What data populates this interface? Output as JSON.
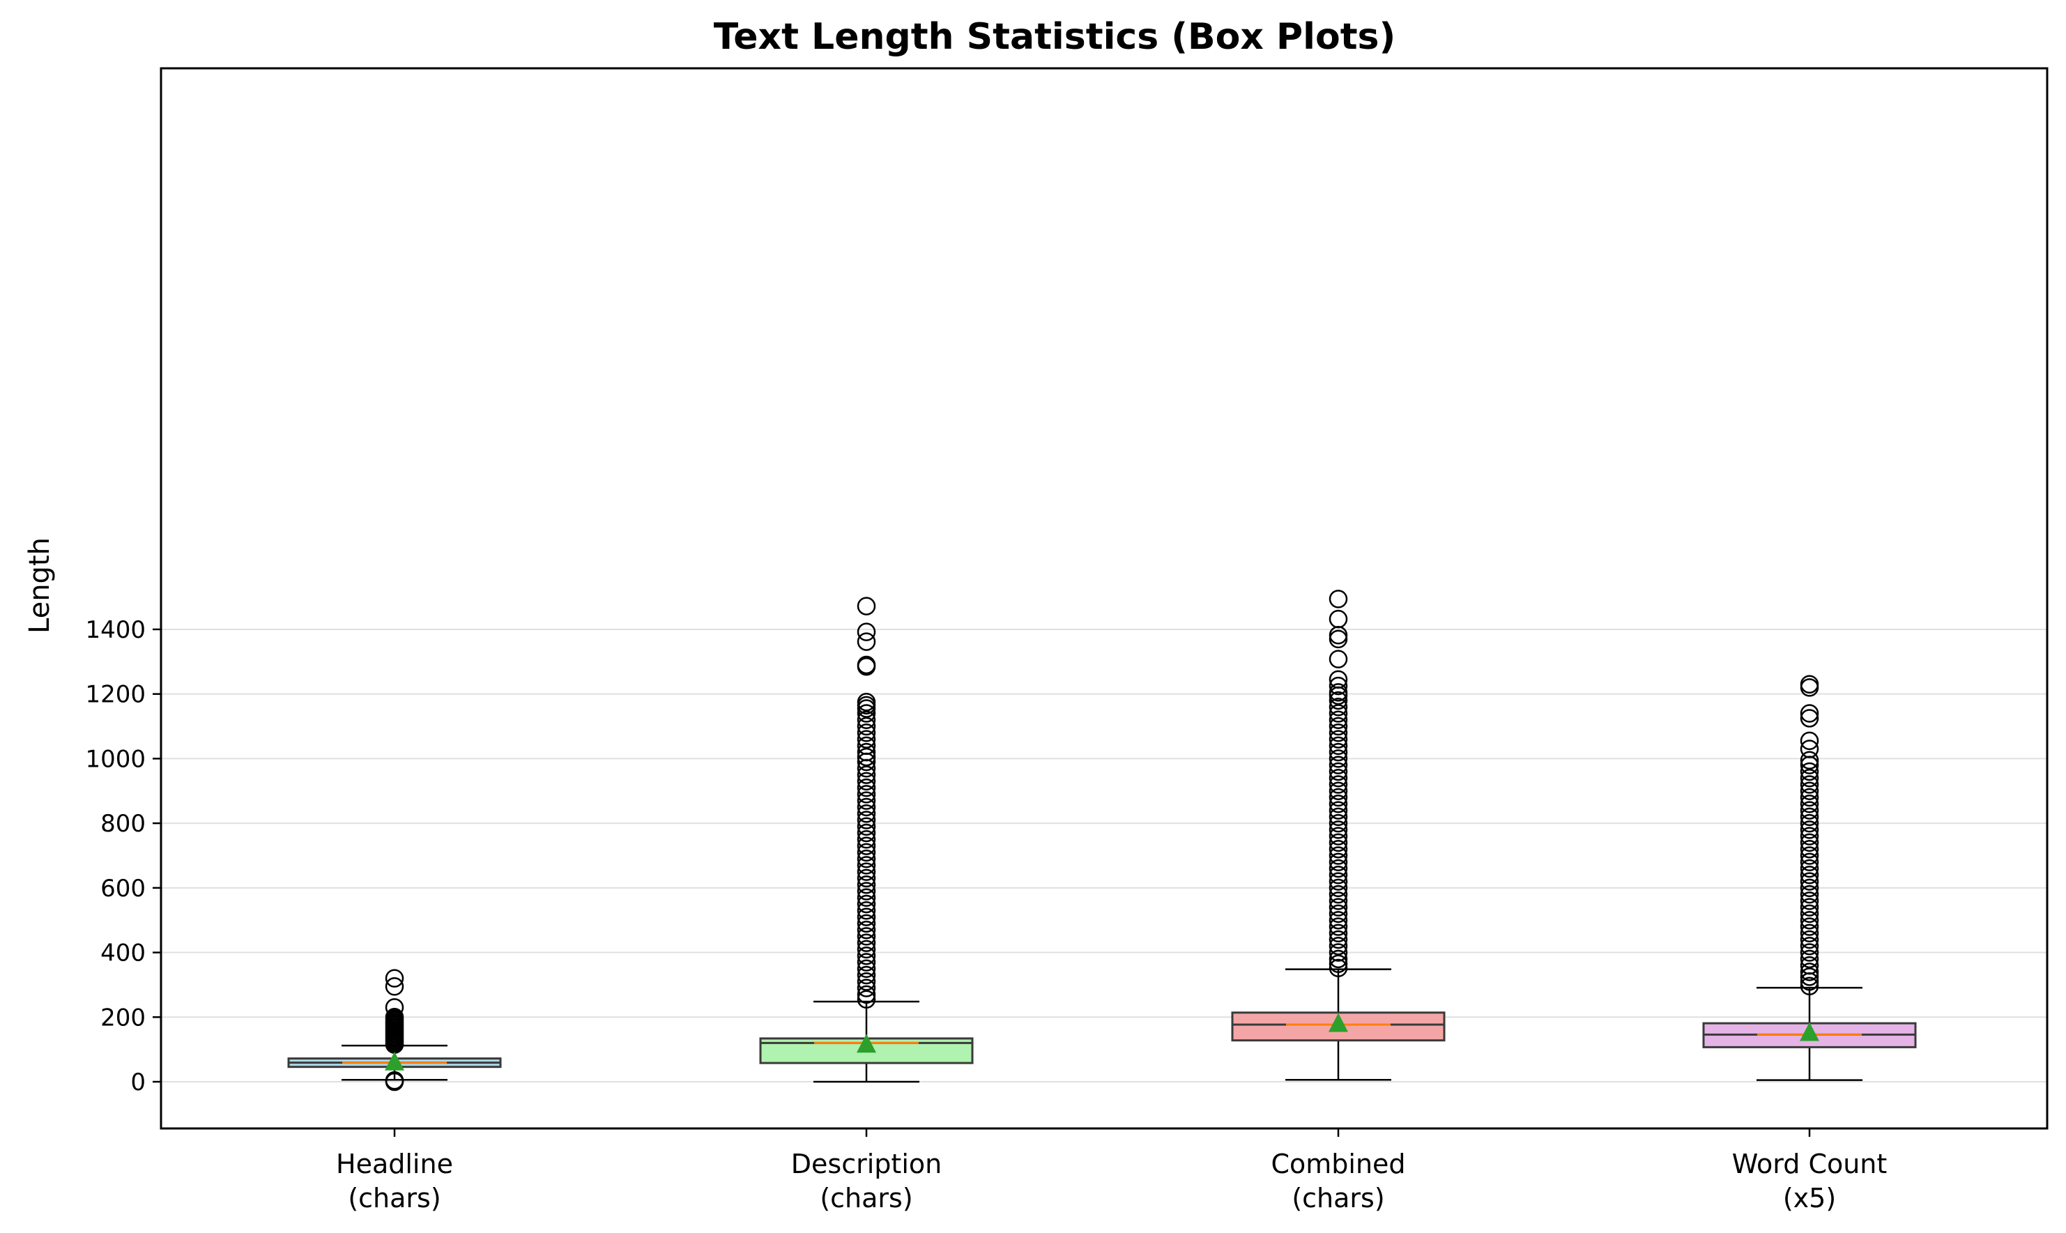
{
  "chart_data": {
    "type": "box",
    "title": "Text Length Statistics (Box Plots)",
    "xlabel": "",
    "ylabel": "Length",
    "ylim": [
      -75,
      1565
    ],
    "yticks": [
      0,
      200,
      400,
      600,
      800,
      1000,
      1200,
      1400
    ],
    "grid": "horizontal",
    "series": [
      {
        "label_line1": "Headline",
        "label_line2": "(chars)",
        "color": "#add8e6",
        "whisker_low": 6,
        "q1": 46,
        "median": 59,
        "mean": 61,
        "q3": 72,
        "whisker_high": 112,
        "outliers_low": [
          0,
          2,
          4
        ],
        "outliers_high": [
          115,
          120,
          125,
          130,
          135,
          140,
          145,
          150,
          155,
          160,
          165,
          170,
          175,
          180,
          185,
          190,
          195,
          200,
          230,
          295,
          320
        ]
      },
      {
        "label_line1": "Description",
        "label_line2": "(chars)",
        "color": "#b0f2b0",
        "whisker_low": 0,
        "q1": 58,
        "median": 120,
        "mean": 116,
        "q3": 134,
        "whisker_high": 248,
        "outliers_low": [],
        "outliers_high": [
          255,
          270,
          290,
          310,
          330,
          350,
          370,
          390,
          410,
          430,
          450,
          470,
          490,
          510,
          530,
          550,
          570,
          590,
          610,
          630,
          650,
          670,
          690,
          710,
          730,
          750,
          770,
          790,
          810,
          830,
          850,
          870,
          890,
          910,
          930,
          950,
          970,
          990,
          1005,
          1020,
          1040,
          1060,
          1080,
          1100,
          1120,
          1140,
          1155,
          1165,
          1175,
          1285,
          1290,
          1362,
          1392,
          1472
        ]
      },
      {
        "label_line1": "Combined",
        "label_line2": "(chars)",
        "color": "#f4a6a6",
        "whisker_low": 6,
        "q1": 128,
        "median": 177,
        "mean": 180,
        "q3": 214,
        "whisker_high": 348,
        "outliers_low": [],
        "outliers_high": [
          352,
          365,
          380,
          400,
          420,
          440,
          460,
          480,
          500,
          520,
          540,
          560,
          580,
          600,
          620,
          640,
          660,
          680,
          700,
          720,
          740,
          760,
          780,
          800,
          820,
          840,
          860,
          880,
          900,
          920,
          940,
          960,
          980,
          1000,
          1020,
          1040,
          1060,
          1080,
          1100,
          1120,
          1140,
          1160,
          1180,
          1195,
          1205,
          1225,
          1245,
          1308,
          1370,
          1382,
          1432,
          1494
        ]
      },
      {
        "label_line1": "Word Count",
        "label_line2": "(x5)",
        "color": "#e6b3e6",
        "whisker_low": 5,
        "q1": 107,
        "median": 146,
        "mean": 152,
        "q3": 181,
        "whisker_high": 291,
        "outliers_low": [],
        "outliers_high": [
          296,
          310,
          325,
          340,
          360,
          380,
          400,
          420,
          440,
          460,
          480,
          500,
          520,
          540,
          560,
          580,
          600,
          620,
          640,
          660,
          680,
          700,
          720,
          740,
          760,
          780,
          800,
          820,
          840,
          860,
          880,
          900,
          920,
          940,
          960,
          980,
          995,
          1030,
          1055,
          1125,
          1140,
          1220,
          1230
        ]
      }
    ]
  }
}
